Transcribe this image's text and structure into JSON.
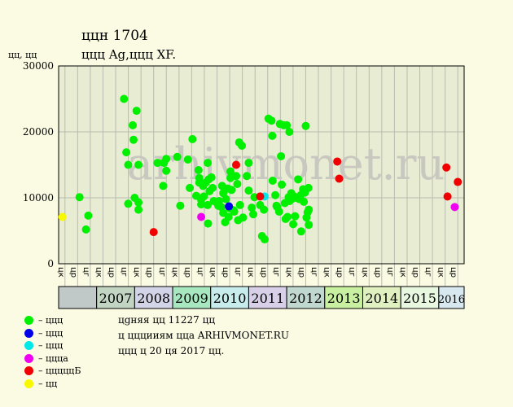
{
  "header": {
    "title": "ццн 1704",
    "subtitle": "ццц Ag,ццц XF.",
    "ylabel": "цц, цц"
  },
  "chart_data": {
    "type": "scatter",
    "ylim": [
      0,
      30000
    ],
    "yticks": [
      0,
      10000,
      20000,
      30000
    ],
    "ytick_labels": [
      "0",
      "10000",
      "20000",
      "30000"
    ],
    "grid": true,
    "watermark": "arhivmonet.ru",
    "xlim": [
      2006.0,
      2016.667
    ],
    "xticks": [
      2006.167,
      2006.5,
      2006.833,
      2007.167,
      2007.5,
      2007.833,
      2008.167,
      2008.5,
      2008.833,
      2009.167,
      2009.5,
      2009.833,
      2010.167,
      2010.5,
      2010.833,
      2011.167,
      2011.5,
      2011.833,
      2012.167,
      2012.5,
      2012.833,
      2013.167,
      2013.5,
      2013.833,
      2014.167,
      2014.5,
      2014.833,
      2015.167,
      2015.5,
      2015.833,
      2016.167,
      2016.5
    ],
    "quarter_labels": [
      "цк",
      "цр",
      "цг",
      "цк",
      "цр",
      "цг",
      "цк",
      "цр",
      "цг",
      "цк",
      "цр",
      "цг",
      "цк",
      "цр",
      "цг",
      "цк",
      "цр",
      "цг",
      "цк",
      "цр",
      "цг",
      "цк",
      "цр",
      "цг",
      "цк",
      "цр",
      "цг",
      "цк",
      "цр",
      "цг",
      "цк",
      "цр"
    ],
    "years": [
      {
        "label": "",
        "color": "#c0c8c8"
      },
      {
        "label": "2007",
        "color": "#c2d4c2"
      },
      {
        "label": "2008",
        "color": "#d4d4e8"
      },
      {
        "label": "2009",
        "color": "#a8e8c0"
      },
      {
        "label": "2010",
        "color": "#c8ecec"
      },
      {
        "label": "2011",
        "color": "#d8d0e8"
      },
      {
        "label": "2012",
        "color": "#c0d8d0"
      },
      {
        "label": "2013",
        "color": "#c8f0a0"
      },
      {
        "label": "2014",
        "color": "#e0f0c0"
      },
      {
        "label": "2015",
        "color": "#e8f8e0"
      },
      {
        "label": "2016",
        "color": "#d8e8f0"
      }
    ],
    "series": [
      {
        "name": "ццц",
        "color": "#00f000",
        "points": [
          [
            2006.55,
            10100
          ],
          [
            2006.72,
            5200
          ],
          [
            2006.78,
            7300
          ],
          [
            2007.72,
            25000
          ],
          [
            2007.78,
            16900
          ],
          [
            2007.83,
            15000
          ],
          [
            2007.83,
            9100
          ],
          [
            2007.95,
            21000
          ],
          [
            2007.97,
            18800
          ],
          [
            2008.0,
            10000
          ],
          [
            2008.05,
            23200
          ],
          [
            2008.1,
            15000
          ],
          [
            2008.1,
            8200
          ],
          [
            2008.1,
            9300
          ],
          [
            2008.6,
            15300
          ],
          [
            2008.75,
            11800
          ],
          [
            2008.77,
            15300
          ],
          [
            2008.83,
            14100
          ],
          [
            2008.83,
            15900
          ],
          [
            2009.12,
            16200
          ],
          [
            2009.2,
            8800
          ],
          [
            2009.4,
            15800
          ],
          [
            2009.45,
            11500
          ],
          [
            2009.52,
            18900
          ],
          [
            2009.62,
            10300
          ],
          [
            2009.68,
            14200
          ],
          [
            2009.7,
            13000
          ],
          [
            2009.7,
            12300
          ],
          [
            2009.75,
            9700
          ],
          [
            2009.75,
            9000
          ],
          [
            2009.8,
            11800
          ],
          [
            2009.82,
            10200
          ],
          [
            2009.87,
            12300
          ],
          [
            2009.92,
            15300
          ],
          [
            2009.92,
            8900
          ],
          [
            2009.93,
            6100
          ],
          [
            2009.95,
            12800
          ],
          [
            2009.97,
            11000
          ],
          [
            2010.02,
            13100
          ],
          [
            2010.05,
            11500
          ],
          [
            2010.08,
            9500
          ],
          [
            2010.13,
            9400
          ],
          [
            2010.2,
            8800
          ],
          [
            2010.22,
            9500
          ],
          [
            2010.28,
            8600
          ],
          [
            2010.3,
            11800
          ],
          [
            2010.33,
            10700
          ],
          [
            2010.33,
            7700
          ],
          [
            2010.38,
            6300
          ],
          [
            2010.4,
            9800
          ],
          [
            2010.45,
            11400
          ],
          [
            2010.47,
            7100
          ],
          [
            2010.5,
            8400
          ],
          [
            2010.52,
            14000
          ],
          [
            2010.52,
            13000
          ],
          [
            2010.55,
            11200
          ],
          [
            2010.6,
            8100
          ],
          [
            2010.62,
            7900
          ],
          [
            2010.67,
            13300
          ],
          [
            2010.7,
            12100
          ],
          [
            2010.72,
            6600
          ],
          [
            2010.75,
            18400
          ],
          [
            2010.77,
            8900
          ],
          [
            2010.82,
            17900
          ],
          [
            2010.85,
            7000
          ],
          [
            2010.95,
            13300
          ],
          [
            2011.0,
            15300
          ],
          [
            2011.0,
            11100
          ],
          [
            2011.08,
            8500
          ],
          [
            2011.12,
            7500
          ],
          [
            2011.15,
            10100
          ],
          [
            2011.3,
            8900
          ],
          [
            2011.4,
            8200
          ],
          [
            2011.52,
            22000
          ],
          [
            2011.6,
            21700
          ],
          [
            2011.62,
            19400
          ],
          [
            2011.63,
            12600
          ],
          [
            2011.7,
            10400
          ],
          [
            2011.73,
            8800
          ],
          [
            2011.75,
            8600
          ],
          [
            2011.8,
            7900
          ],
          [
            2011.82,
            21200
          ],
          [
            2011.85,
            16300
          ],
          [
            2011.87,
            12000
          ],
          [
            2011.92,
            21000
          ],
          [
            2011.95,
            9200
          ],
          [
            2011.97,
            6800
          ],
          [
            2012.0,
            21000
          ],
          [
            2012.02,
            7100
          ],
          [
            2012.05,
            10100
          ],
          [
            2012.07,
            20000
          ],
          [
            2012.07,
            9500
          ],
          [
            2012.12,
            10700
          ],
          [
            2012.13,
            9800
          ],
          [
            2012.17,
            6000
          ],
          [
            2012.2,
            10200
          ],
          [
            2012.22,
            7200
          ],
          [
            2012.25,
            10000
          ],
          [
            2012.3,
            12800
          ],
          [
            2012.33,
            9800
          ],
          [
            2012.37,
            10400
          ],
          [
            2012.38,
            4900
          ],
          [
            2012.43,
            11300
          ],
          [
            2012.45,
            9400
          ],
          [
            2012.48,
            10800
          ],
          [
            2012.5,
            20900
          ],
          [
            2012.52,
            7000
          ],
          [
            2012.55,
            7800
          ],
          [
            2012.57,
            11500
          ],
          [
            2012.58,
            5900
          ],
          [
            2012.58,
            8200
          ],
          [
            2011.35,
            4200
          ],
          [
            2011.42,
            3700
          ]
        ]
      },
      {
        "name": "ццц",
        "color": "#0000e8",
        "points": [
          [
            2010.48,
            8700
          ]
        ]
      },
      {
        "name": "ццц",
        "color": "#00e8e8",
        "points": [
          [
            2011.42,
            10200
          ]
        ]
      },
      {
        "name": "цццa",
        "color": "#f000f0",
        "points": [
          [
            2009.75,
            7100
          ],
          [
            2016.42,
            8600
          ]
        ]
      },
      {
        "name": "цццццБ",
        "color": "#f00000",
        "points": [
          [
            2008.5,
            4800
          ],
          [
            2010.67,
            15000
          ],
          [
            2011.3,
            10200
          ],
          [
            2013.33,
            15500
          ],
          [
            2013.38,
            12900
          ],
          [
            2016.2,
            14600
          ],
          [
            2016.23,
            10200
          ],
          [
            2016.5,
            12400
          ]
        ]
      },
      {
        "name": "цц",
        "color": "#f8f800",
        "points": [
          [
            2006.1,
            7100
          ]
        ]
      }
    ]
  },
  "notes": {
    "line1": "цցняя цц 11227 цц",
    "line2": "ц цццииям цца ARHIVMONET.RU",
    "line3": "ццц ц 20 ця 2017 цц."
  }
}
